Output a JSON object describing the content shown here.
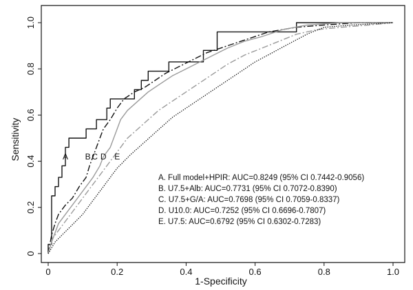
{
  "chart_data": {
    "type": "line",
    "xlabel": "1-Specificity",
    "ylabel": "Sensitivity",
    "xlim": [
      0,
      1
    ],
    "ylim": [
      0,
      1
    ],
    "x_ticks": [
      "0",
      "0.2",
      "0.4",
      "0.6",
      "0.8",
      "1.0"
    ],
    "y_ticks": [
      "0",
      "0.2",
      "0.4",
      "0.6",
      "0.8",
      "1.0"
    ],
    "grid": false,
    "legend_position": "bottom-right",
    "series": [
      {
        "name": "A. Full model+HPIR: AUC=0.8249 (95% CI 0.7442-0.9056)",
        "letter": "A",
        "style": "solid",
        "color": "#111111",
        "letter_pos": {
          "x": 0.05,
          "y": 0.42
        },
        "points": [
          [
            0,
            0
          ],
          [
            0,
            0.04
          ],
          [
            0.01,
            0.04
          ],
          [
            0.01,
            0.25
          ],
          [
            0.02,
            0.25
          ],
          [
            0.02,
            0.29
          ],
          [
            0.03,
            0.29
          ],
          [
            0.03,
            0.33
          ],
          [
            0.04,
            0.33
          ],
          [
            0.04,
            0.38
          ],
          [
            0.05,
            0.38
          ],
          [
            0.05,
            0.46
          ],
          [
            0.06,
            0.46
          ],
          [
            0.06,
            0.5
          ],
          [
            0.11,
            0.5
          ],
          [
            0.11,
            0.54
          ],
          [
            0.14,
            0.54
          ],
          [
            0.14,
            0.58
          ],
          [
            0.17,
            0.58
          ],
          [
            0.17,
            0.63
          ],
          [
            0.18,
            0.63
          ],
          [
            0.18,
            0.67
          ],
          [
            0.25,
            0.67
          ],
          [
            0.25,
            0.71
          ],
          [
            0.27,
            0.71
          ],
          [
            0.27,
            0.75
          ],
          [
            0.29,
            0.75
          ],
          [
            0.29,
            0.79
          ],
          [
            0.35,
            0.79
          ],
          [
            0.35,
            0.83
          ],
          [
            0.45,
            0.83
          ],
          [
            0.45,
            0.88
          ],
          [
            0.49,
            0.88
          ],
          [
            0.49,
            0.96
          ],
          [
            0.72,
            0.96
          ],
          [
            0.72,
            1.0
          ],
          [
            1.0,
            1.0
          ]
        ]
      },
      {
        "name": "B. U7.5+Alb: AUC=0.7731 (95% CI 0.7072-0.8390)",
        "letter": "B",
        "style": "dashdot",
        "color": "#111111",
        "letter_pos": {
          "x": 0.115,
          "y": 0.42
        },
        "points": [
          [
            0,
            0
          ],
          [
            0.01,
            0.08
          ],
          [
            0.02,
            0.13
          ],
          [
            0.03,
            0.17
          ],
          [
            0.05,
            0.21
          ],
          [
            0.07,
            0.24
          ],
          [
            0.09,
            0.29
          ],
          [
            0.11,
            0.33
          ],
          [
            0.12,
            0.38
          ],
          [
            0.13,
            0.42
          ],
          [
            0.14,
            0.46
          ],
          [
            0.15,
            0.5
          ],
          [
            0.16,
            0.54
          ],
          [
            0.18,
            0.58
          ],
          [
            0.2,
            0.63
          ],
          [
            0.22,
            0.67
          ],
          [
            0.25,
            0.7
          ],
          [
            0.28,
            0.72
          ],
          [
            0.31,
            0.75
          ],
          [
            0.34,
            0.78
          ],
          [
            0.38,
            0.81
          ],
          [
            0.42,
            0.84
          ],
          [
            0.46,
            0.87
          ],
          [
            0.52,
            0.9
          ],
          [
            0.58,
            0.93
          ],
          [
            0.64,
            0.96
          ],
          [
            0.72,
            0.98
          ],
          [
            0.8,
            0.99
          ],
          [
            0.9,
            1.0
          ],
          [
            1.0,
            1.0
          ]
        ]
      },
      {
        "name": "C. U7.5+G/A: AUC=0.7698 (95% CI 0.7059-0.8337)",
        "letter": "C",
        "style": "solid",
        "color": "#9a9a9a",
        "letter_pos": {
          "x": 0.135,
          "y": 0.42
        },
        "points": [
          [
            0,
            0
          ],
          [
            0.01,
            0.05
          ],
          [
            0.02,
            0.09
          ],
          [
            0.03,
            0.13
          ],
          [
            0.05,
            0.17
          ],
          [
            0.07,
            0.21
          ],
          [
            0.09,
            0.25
          ],
          [
            0.11,
            0.29
          ],
          [
            0.13,
            0.33
          ],
          [
            0.15,
            0.38
          ],
          [
            0.16,
            0.42
          ],
          [
            0.18,
            0.46
          ],
          [
            0.19,
            0.5
          ],
          [
            0.2,
            0.54
          ],
          [
            0.21,
            0.58
          ],
          [
            0.23,
            0.62
          ],
          [
            0.26,
            0.66
          ],
          [
            0.29,
            0.7
          ],
          [
            0.32,
            0.73
          ],
          [
            0.36,
            0.77
          ],
          [
            0.4,
            0.8
          ],
          [
            0.44,
            0.83
          ],
          [
            0.48,
            0.86
          ],
          [
            0.52,
            0.89
          ],
          [
            0.57,
            0.92
          ],
          [
            0.62,
            0.94
          ],
          [
            0.68,
            0.97
          ],
          [
            0.75,
            0.99
          ],
          [
            0.85,
            1.0
          ],
          [
            1.0,
            1.0
          ]
        ]
      },
      {
        "name": "D. U10.0: AUC=0.7252 (95% CI 0.6696-0.7807)",
        "letter": "D",
        "style": "dashdot",
        "color": "#9a9a9a",
        "letter_pos": {
          "x": 0.16,
          "y": 0.42
        },
        "points": [
          [
            0,
            0
          ],
          [
            0.01,
            0.06
          ],
          [
            0.03,
            0.1
          ],
          [
            0.05,
            0.14
          ],
          [
            0.07,
            0.18
          ],
          [
            0.09,
            0.22
          ],
          [
            0.11,
            0.26
          ],
          [
            0.13,
            0.3
          ],
          [
            0.15,
            0.34
          ],
          [
            0.17,
            0.38
          ],
          [
            0.19,
            0.42
          ],
          [
            0.21,
            0.46
          ],
          [
            0.23,
            0.5
          ],
          [
            0.26,
            0.54
          ],
          [
            0.29,
            0.58
          ],
          [
            0.32,
            0.62
          ],
          [
            0.36,
            0.66
          ],
          [
            0.4,
            0.7
          ],
          [
            0.44,
            0.74
          ],
          [
            0.48,
            0.78
          ],
          [
            0.52,
            0.82
          ],
          [
            0.57,
            0.86
          ],
          [
            0.62,
            0.89
          ],
          [
            0.67,
            0.92
          ],
          [
            0.72,
            0.95
          ],
          [
            0.78,
            0.97
          ],
          [
            0.85,
            0.98
          ],
          [
            0.93,
            0.99
          ],
          [
            1.0,
            1.0
          ]
        ]
      },
      {
        "name": "E. U7.5: AUC=0.6792 (95% CI 0.6302-0.7283)",
        "letter": "E",
        "style": "dotted",
        "color": "#111111",
        "letter_pos": {
          "x": 0.2,
          "y": 0.42
        },
        "points": [
          [
            0,
            0
          ],
          [
            0.02,
            0.05
          ],
          [
            0.04,
            0.08
          ],
          [
            0.06,
            0.11
          ],
          [
            0.08,
            0.14
          ],
          [
            0.1,
            0.17
          ],
          [
            0.12,
            0.21
          ],
          [
            0.14,
            0.25
          ],
          [
            0.16,
            0.29
          ],
          [
            0.18,
            0.33
          ],
          [
            0.2,
            0.37
          ],
          [
            0.22,
            0.4
          ],
          [
            0.24,
            0.43
          ],
          [
            0.27,
            0.47
          ],
          [
            0.3,
            0.51
          ],
          [
            0.33,
            0.55
          ],
          [
            0.36,
            0.59
          ],
          [
            0.4,
            0.63
          ],
          [
            0.44,
            0.67
          ],
          [
            0.48,
            0.71
          ],
          [
            0.52,
            0.75
          ],
          [
            0.56,
            0.79
          ],
          [
            0.6,
            0.83
          ],
          [
            0.65,
            0.87
          ],
          [
            0.7,
            0.91
          ],
          [
            0.75,
            0.95
          ],
          [
            0.8,
            0.98
          ],
          [
            0.88,
            0.99
          ],
          [
            1.0,
            1.0
          ]
        ]
      }
    ]
  }
}
